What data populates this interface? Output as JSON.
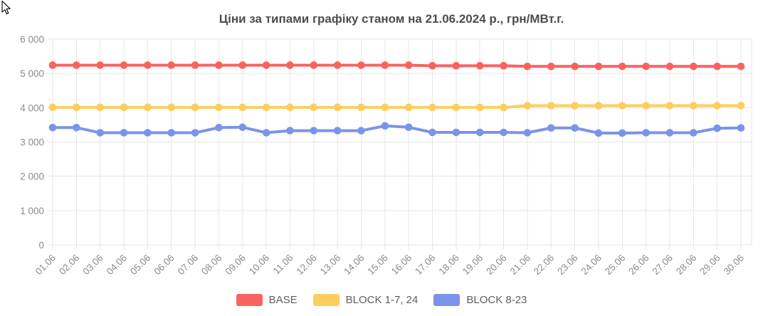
{
  "chart_data": {
    "type": "line",
    "title": "Ціни за типами графіку станом на 21.06.2024 р., грн/МВт.г.",
    "xlabel": "",
    "ylabel": "",
    "x": [
      "01.06",
      "02.06",
      "03.06",
      "04.06",
      "05.06",
      "06.06",
      "07.06",
      "08.06",
      "09.06",
      "10.06",
      "11.06",
      "12.06",
      "13.06",
      "14.06",
      "15.06",
      "16.06",
      "17.06",
      "18.06",
      "19.06",
      "20.06",
      "21.06",
      "22.06",
      "23.06",
      "24.06",
      "25.06",
      "26.06",
      "27.06",
      "28.06",
      "29.06",
      "30.06"
    ],
    "series": [
      {
        "name": "BASE",
        "color": "#f86360",
        "values": [
          5240,
          5240,
          5240,
          5240,
          5240,
          5240,
          5240,
          5240,
          5240,
          5240,
          5240,
          5240,
          5240,
          5240,
          5240,
          5240,
          5225,
          5225,
          5225,
          5225,
          5205,
          5205,
          5205,
          5205,
          5205,
          5205,
          5205,
          5205,
          5205,
          5205
        ]
      },
      {
        "name": "BLOCK 1-7, 24",
        "color": "#fcce5e",
        "values": [
          4010,
          4010,
          4010,
          4010,
          4010,
          4010,
          4010,
          4010,
          4010,
          4010,
          4010,
          4010,
          4010,
          4010,
          4010,
          4010,
          4010,
          4010,
          4010,
          4010,
          4060,
          4060,
          4060,
          4060,
          4060,
          4060,
          4060,
          4060,
          4060,
          4060
        ]
      },
      {
        "name": "BLOCK 8-23",
        "color": "#7b94e8",
        "values": [
          3420,
          3420,
          3270,
          3270,
          3270,
          3270,
          3270,
          3420,
          3430,
          3270,
          3330,
          3330,
          3330,
          3330,
          3470,
          3430,
          3280,
          3280,
          3280,
          3280,
          3270,
          3410,
          3410,
          3260,
          3260,
          3270,
          3270,
          3270,
          3400,
          3410
        ]
      }
    ],
    "ylim": [
      0,
      6000
    ],
    "ytick_step": 1000,
    "ytick_labels": [
      "0",
      "1 000",
      "2 000",
      "3 000",
      "4 000",
      "5 000",
      "6 000"
    ],
    "grid": true,
    "legend_position": "bottom",
    "title_color": "#4d4d4d",
    "axis_label_color": "#8b8b8b",
    "grid_color": "#e6e6e6",
    "background_color": "#ffffff"
  }
}
